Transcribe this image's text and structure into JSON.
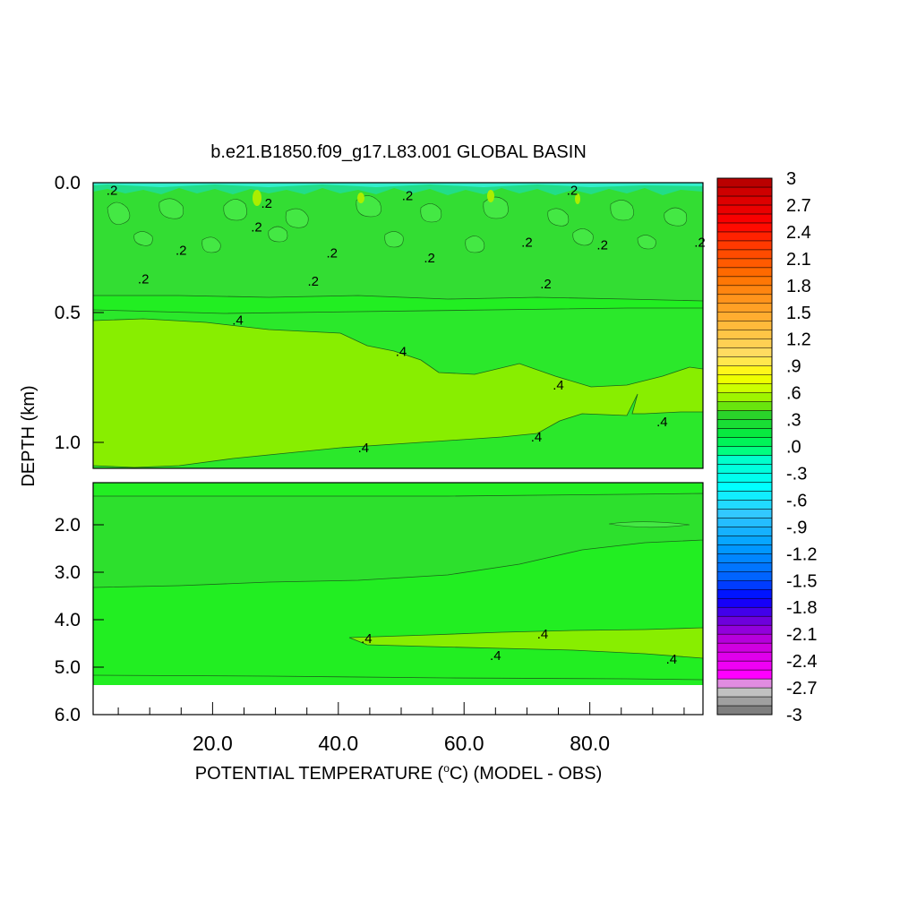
{
  "chart_data": {
    "type": "heatmap",
    "title": "b.e21.B1850.f09_g17.L83.001 GLOBAL BASIN",
    "xlabel_main": "POTENTIAL TEMPERATURE (",
    "xlabel_deg": "o",
    "xlabel_tail": "C) (MODEL - OBS)",
    "ylabel": "DEPTH (km)",
    "x_ticks": [
      "20.0",
      "40.0",
      "60.0",
      "80.0"
    ],
    "x_tick_values": [
      20,
      40,
      60,
      80
    ],
    "xlim": [
      1,
      98
    ],
    "upper_panel": {
      "ylim": [
        0.0,
        1.1
      ],
      "y_ticks": [
        "0.0",
        "0.5",
        "1.0"
      ],
      "y_tick_values": [
        0.0,
        0.5,
        1.0
      ]
    },
    "lower_panel": {
      "ylim": [
        1.1,
        6.0
      ],
      "y_ticks": [
        "2.0",
        "3.0",
        "4.0",
        "5.0",
        "6.0"
      ],
      "y_tick_values": [
        2.0,
        3.0,
        4.0,
        5.0,
        6.0
      ],
      "no_data_below": 5.35
    },
    "contour_labels": {
      "upper": [
        {
          "text": ".2",
          "x": 4.0,
          "y": 0.03
        },
        {
          "text": ".2",
          "x": 28.6,
          "y": 0.08
        },
        {
          "text": ".2",
          "x": 51.0,
          "y": 0.05
        },
        {
          "text": ".2",
          "x": 77.2,
          "y": 0.03
        },
        {
          "text": ".2",
          "x": 27.0,
          "y": 0.17
        },
        {
          "text": ".2",
          "x": 15.0,
          "y": 0.26
        },
        {
          "text": ".2",
          "x": 39.0,
          "y": 0.27
        },
        {
          "text": ".2",
          "x": 54.5,
          "y": 0.29
        },
        {
          "text": ".2",
          "x": 70.0,
          "y": 0.23
        },
        {
          "text": ".2",
          "x": 82.0,
          "y": 0.24
        },
        {
          "text": ".2",
          "x": 97.5,
          "y": 0.23
        },
        {
          "text": ".2",
          "x": 9.0,
          "y": 0.37
        },
        {
          "text": ".2",
          "x": 36.0,
          "y": 0.38
        },
        {
          "text": ".2",
          "x": 73.0,
          "y": 0.39
        },
        {
          "text": ".4",
          "x": 24.0,
          "y": 0.53
        },
        {
          "text": ".4",
          "x": 50.0,
          "y": 0.65
        },
        {
          "text": ".4",
          "x": 75.0,
          "y": 0.78
        },
        {
          "text": ".4",
          "x": 91.5,
          "y": 0.92
        },
        {
          "text": ".4",
          "x": 44.0,
          "y": 1.02
        },
        {
          "text": ".4",
          "x": 71.5,
          "y": 0.98
        }
      ],
      "lower": [
        {
          "text": ".4",
          "x": 44.5,
          "y": 4.4
        },
        {
          "text": ".4",
          "x": 72.5,
          "y": 4.3
        },
        {
          "text": ".4",
          "x": 65.0,
          "y": 4.75
        },
        {
          "text": ".4",
          "x": 93.0,
          "y": 4.83
        }
      ]
    },
    "colorbar": {
      "min": -3,
      "max": 3,
      "step": 0.1,
      "labels": [
        "3",
        "2.7",
        "2.4",
        "2.1",
        "1.8",
        "1.5",
        "1.2",
        ".9",
        ".6",
        ".3",
        ".0",
        "-.3",
        "-.6",
        "-.9",
        "-1.2",
        "-1.5",
        "-1.8",
        "-2.1",
        "-2.4",
        "-2.7",
        "-3"
      ],
      "label_values": [
        3,
        2.7,
        2.4,
        2.1,
        1.8,
        1.5,
        1.2,
        0.9,
        0.6,
        0.3,
        0.0,
        -0.3,
        -0.6,
        -0.9,
        -1.2,
        -1.5,
        -1.8,
        -2.1,
        -2.4,
        -2.7,
        -3
      ],
      "stops": [
        {
          "v": -3.0,
          "color": "#6e6e6e"
        },
        {
          "v": -2.7,
          "color": "#d2d2d2"
        },
        {
          "v": -2.55,
          "color": "#ff00ff"
        },
        {
          "v": -2.2,
          "color": "#c800dc"
        },
        {
          "v": -1.95,
          "color": "#6e00dc"
        },
        {
          "v": -1.7,
          "color": "#0000ff"
        },
        {
          "v": -1.45,
          "color": "#0064ff"
        },
        {
          "v": -1.1,
          "color": "#00a0ff"
        },
        {
          "v": -0.75,
          "color": "#32c8ff"
        },
        {
          "v": -0.45,
          "color": "#00ffff"
        },
        {
          "v": -0.15,
          "color": "#00ffcc"
        },
        {
          "v": -0.05,
          "color": "#00ff80"
        },
        {
          "v": 0.1,
          "color": "#00ee44"
        },
        {
          "v": 0.35,
          "color": "#2ad42a"
        },
        {
          "v": 0.5,
          "color": "#88ee00"
        },
        {
          "v": 0.65,
          "color": "#ccff00"
        },
        {
          "v": 0.8,
          "color": "#ffff00"
        },
        {
          "v": 1.0,
          "color": "#ffe066"
        },
        {
          "v": 1.3,
          "color": "#ffc040"
        },
        {
          "v": 1.6,
          "color": "#ff9a20"
        },
        {
          "v": 1.9,
          "color": "#ff7000"
        },
        {
          "v": 2.2,
          "color": "#ff4400"
        },
        {
          "v": 2.5,
          "color": "#ff0000"
        },
        {
          "v": 2.8,
          "color": "#d80000"
        },
        {
          "v": 3.0,
          "color": "#b00000"
        }
      ]
    },
    "fields": {
      "surface_band": {
        "color": "#22dd77",
        "depth_to": 0.05
      },
      "upper_layer": {
        "color": "#33dd33",
        "depth_to": 0.45
      },
      "mid_layer": {
        "color": "#22ee22"
      },
      "anomaly_04": {
        "color": "#88ee00"
      },
      "deep_layer": {
        "color": "#22ee22"
      },
      "deep_core": {
        "color": "#33e033"
      },
      "missing": {
        "color": "#ffffff"
      }
    }
  }
}
